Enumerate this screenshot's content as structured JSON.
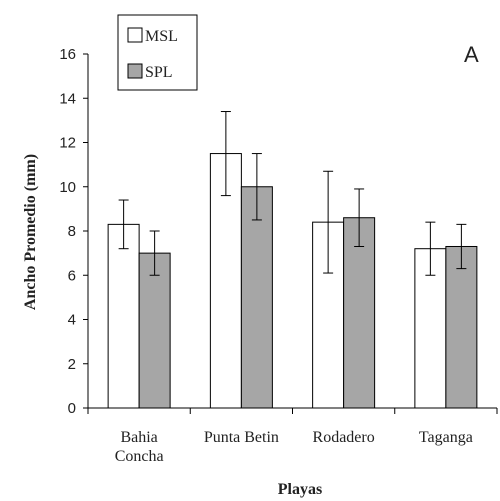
{
  "chart_data": {
    "type": "bar",
    "panel_label": "A",
    "xlabel": "Playas",
    "ylabel": "Ancho Promedio (mm)",
    "ylim": [
      0,
      16
    ],
    "yticks": [
      "0",
      "2",
      "4",
      "6",
      "8",
      "10",
      "12",
      "14",
      "16"
    ],
    "categories": [
      [
        "Bahia",
        "Concha"
      ],
      [
        "Punta Betin"
      ],
      [
        "Rodadero"
      ],
      [
        "Taganga"
      ]
    ],
    "series": [
      {
        "name": "MSL",
        "color": "#ffffff",
        "values": [
          8.3,
          11.5,
          8.4,
          7.2
        ],
        "errors": [
          1.1,
          1.9,
          2.3,
          1.2
        ]
      },
      {
        "name": "SPL",
        "color": "#a6a6a6",
        "values": [
          7.0,
          10.0,
          8.6,
          7.3
        ],
        "errors": [
          1.0,
          1.5,
          1.3,
          1.0
        ]
      }
    ],
    "legend_position": "top-left",
    "grid": false,
    "error_bars": true
  }
}
